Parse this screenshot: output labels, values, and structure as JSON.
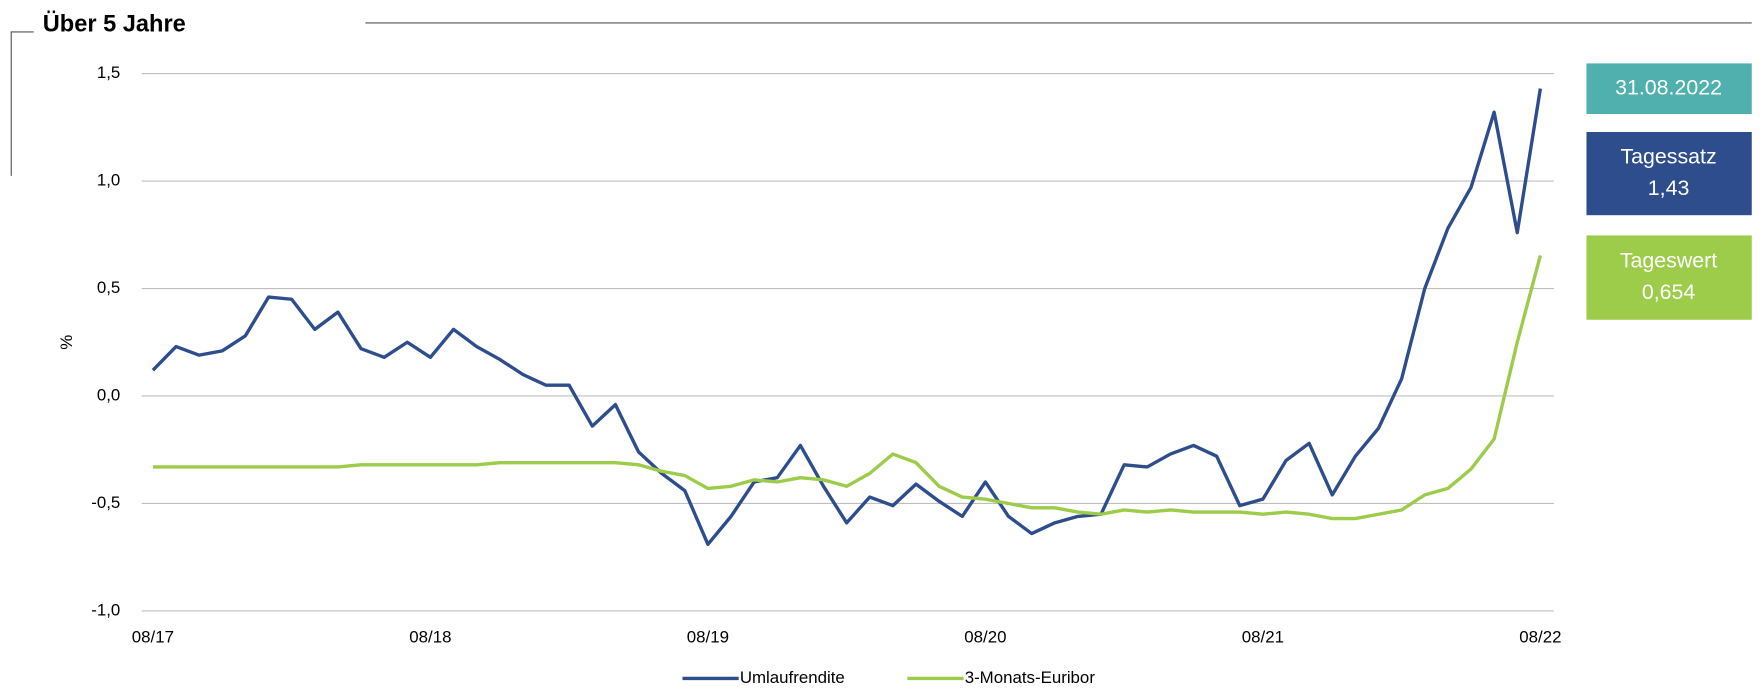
{
  "chart_data": {
    "type": "line",
    "title": "Über 5 Jahre",
    "y_label": "%",
    "categories": [
      "08/17",
      null,
      null,
      null,
      null,
      null,
      null,
      null,
      null,
      null,
      null,
      null,
      "08/18",
      null,
      null,
      null,
      null,
      null,
      null,
      null,
      null,
      null,
      null,
      null,
      "08/19",
      null,
      null,
      null,
      null,
      null,
      null,
      null,
      null,
      null,
      null,
      null,
      "08/20",
      null,
      null,
      null,
      null,
      null,
      null,
      null,
      null,
      null,
      null,
      null,
      "08/21",
      null,
      null,
      null,
      null,
      null,
      null,
      null,
      null,
      null,
      null,
      null,
      "08/22"
    ],
    "series": [
      {
        "name": "Umlaufrendite",
        "color": "#2e4d8c",
        "values": [
          0.12,
          0.23,
          0.19,
          0.21,
          0.28,
          0.46,
          0.45,
          0.31,
          0.39,
          0.22,
          0.18,
          0.25,
          0.18,
          0.31,
          0.23,
          0.17,
          0.1,
          0.05,
          0.05,
          -0.14,
          -0.04,
          -0.26,
          -0.36,
          -0.44,
          -0.69,
          -0.56,
          -0.4,
          -0.38,
          -0.23,
          -0.42,
          -0.59,
          -0.47,
          -0.51,
          -0.41,
          -0.49,
          -0.56,
          -0.4,
          -0.56,
          -0.64,
          -0.59,
          -0.56,
          -0.55,
          -0.32,
          -0.33,
          -0.27,
          -0.23,
          -0.28,
          -0.51,
          -0.48,
          -0.3,
          -0.22,
          -0.46,
          -0.28,
          -0.15,
          0.08,
          0.5,
          0.78,
          0.97,
          1.32,
          0.76,
          1.43
        ]
      },
      {
        "name": "3-Monats-Euribor",
        "color": "#9ccc4a",
        "values": [
          -0.33,
          -0.33,
          -0.33,
          -0.33,
          -0.33,
          -0.33,
          -0.33,
          -0.33,
          -0.33,
          -0.32,
          -0.32,
          -0.32,
          -0.32,
          -0.32,
          -0.32,
          -0.31,
          -0.31,
          -0.31,
          -0.31,
          -0.31,
          -0.31,
          -0.32,
          -0.35,
          -0.37,
          -0.43,
          -0.42,
          -0.39,
          -0.4,
          -0.38,
          -0.39,
          -0.42,
          -0.36,
          -0.27,
          -0.31,
          -0.42,
          -0.47,
          -0.48,
          -0.5,
          -0.52,
          -0.52,
          -0.54,
          -0.55,
          -0.53,
          -0.54,
          -0.53,
          -0.54,
          -0.54,
          -0.54,
          -0.55,
          -0.54,
          -0.55,
          -0.57,
          -0.57,
          -0.55,
          -0.53,
          -0.46,
          -0.43,
          -0.34,
          -0.2,
          0.25,
          0.654
        ]
      }
    ],
    "ylim": [
      -1.0,
      1.5
    ],
    "yticks": [
      {
        "value": 1.5,
        "label": "1,5"
      },
      {
        "value": 1.0,
        "label": "1,0"
      },
      {
        "value": 0.5,
        "label": "0,5"
      },
      {
        "value": 0,
        "label": "0,0"
      },
      {
        "value": -0.5,
        "label": "-0,5"
      },
      {
        "value": -1.0,
        "label": "-1,0"
      }
    ],
    "grid": true,
    "info_boxes": [
      {
        "lines": [
          "31.08.2022"
        ],
        "color": "#4fb0ad"
      },
      {
        "lines": [
          "Tagessatz",
          "1,43"
        ],
        "color": "#2e4d8c"
      },
      {
        "lines": [
          "Tageswert",
          "0,654"
        ],
        "color": "#9ccc4a"
      }
    ]
  }
}
